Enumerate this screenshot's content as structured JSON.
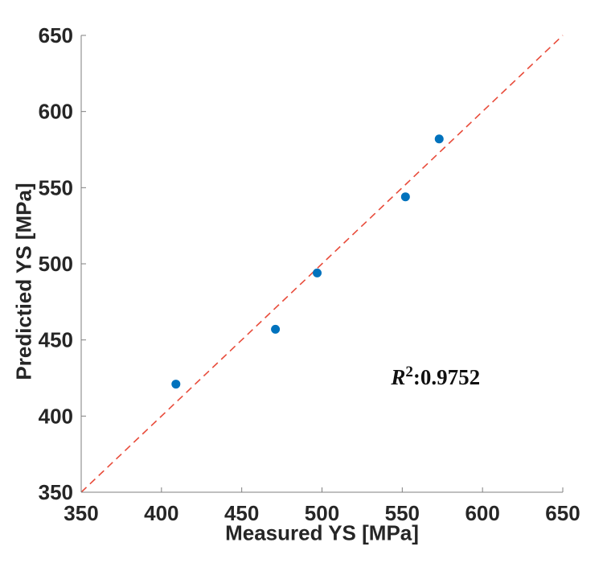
{
  "chart_data": {
    "type": "scatter",
    "title": "",
    "xlabel": "Measured YS [MPa]",
    "ylabel": "Predictied YS [MPa]",
    "xlim": [
      350,
      650
    ],
    "ylim": [
      350,
      650
    ],
    "xticks": [
      350,
      400,
      450,
      500,
      550,
      600,
      650
    ],
    "yticks": [
      350,
      400,
      450,
      500,
      550,
      600,
      650
    ],
    "grid": false,
    "legend": null,
    "series": [
      {
        "name": "predicted-vs-measured-points",
        "marker": "filled-circle",
        "color": "#0072BD",
        "points": [
          [
            409,
            421
          ],
          [
            471,
            457
          ],
          [
            497,
            494
          ],
          [
            552,
            544
          ],
          [
            573,
            582
          ]
        ]
      }
    ],
    "ref_line": {
      "type": "identity",
      "style": "dashed",
      "color": "#E84B3A",
      "from": [
        350,
        350
      ],
      "to": [
        650,
        650
      ]
    },
    "annotation": {
      "text": "R²:0.9752",
      "base": "R",
      "sup": "2",
      "rest": ":0.9752",
      "x": 543,
      "y": 418
    }
  },
  "colors": {
    "axis": "#7F7F7F",
    "text": "#262626",
    "marker": "#0072BD",
    "ref_line": "#E84B3A",
    "background": "#FFFFFF"
  }
}
